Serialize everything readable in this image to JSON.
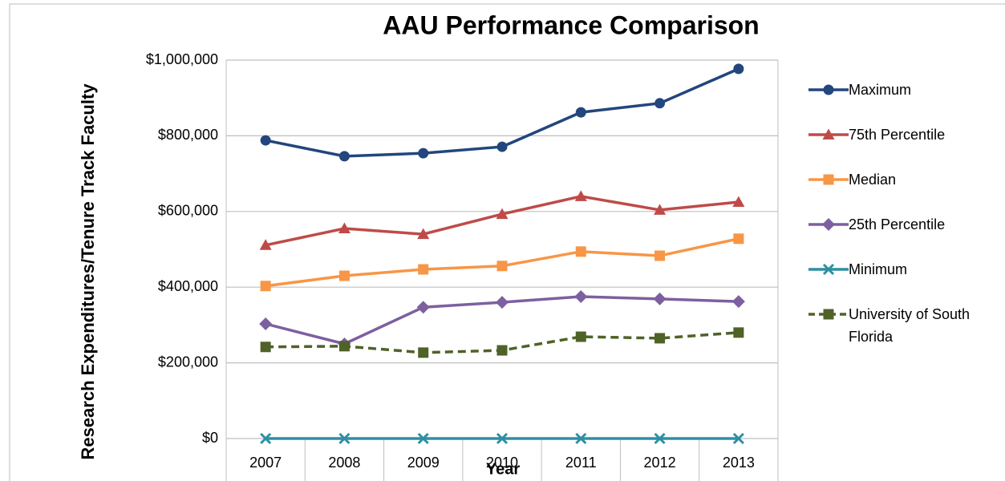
{
  "chart_data": {
    "type": "line",
    "title": "AAU Performance Comparison",
    "xlabel": "Year",
    "ylabel": "Research Expenditures/Tenure Track Faculty",
    "categories": [
      "2007",
      "2008",
      "2009",
      "2010",
      "2011",
      "2012",
      "2013"
    ],
    "ylim": [
      0,
      1000000
    ],
    "yticks": [
      {
        "value": 0,
        "label": "$0"
      },
      {
        "value": 200000,
        "label": "$200,000"
      },
      {
        "value": 400000,
        "label": "$400,000"
      },
      {
        "value": 600000,
        "label": "$600,000"
      },
      {
        "value": 800000,
        "label": "$800,000"
      },
      {
        "value": 1000000,
        "label": "$1,000,000"
      }
    ],
    "grid": true,
    "legend": "right",
    "series": [
      {
        "name": "Maximum",
        "color": "#22467d",
        "marker": "circle",
        "dash": false,
        "values": [
          788000,
          746000,
          754000,
          771000,
          862000,
          886000,
          977000
        ]
      },
      {
        "name": "75th Percentile",
        "color": "#be4b48",
        "marker": "triangle",
        "dash": false,
        "values": [
          511000,
          555000,
          540000,
          593000,
          640000,
          604000,
          625000
        ]
      },
      {
        "name": "Median",
        "color": "#f79646",
        "marker": "square",
        "dash": false,
        "values": [
          403000,
          430000,
          447000,
          456000,
          494000,
          483000,
          528000
        ]
      },
      {
        "name": "25th Percentile",
        "color": "#7d60a0",
        "marker": "diamond",
        "dash": false,
        "values": [
          303000,
          250000,
          347000,
          360000,
          375000,
          369000,
          362000
        ]
      },
      {
        "name": "Minimum",
        "color": "#2e8fa3",
        "marker": "x",
        "dash": false,
        "values": [
          0,
          0,
          0,
          0,
          0,
          0,
          0
        ]
      },
      {
        "name": "University of South Florida",
        "color": "#4f6228",
        "marker": "square",
        "dash": true,
        "values": [
          242000,
          244000,
          227000,
          233000,
          269000,
          265000,
          280000
        ]
      }
    ]
  }
}
